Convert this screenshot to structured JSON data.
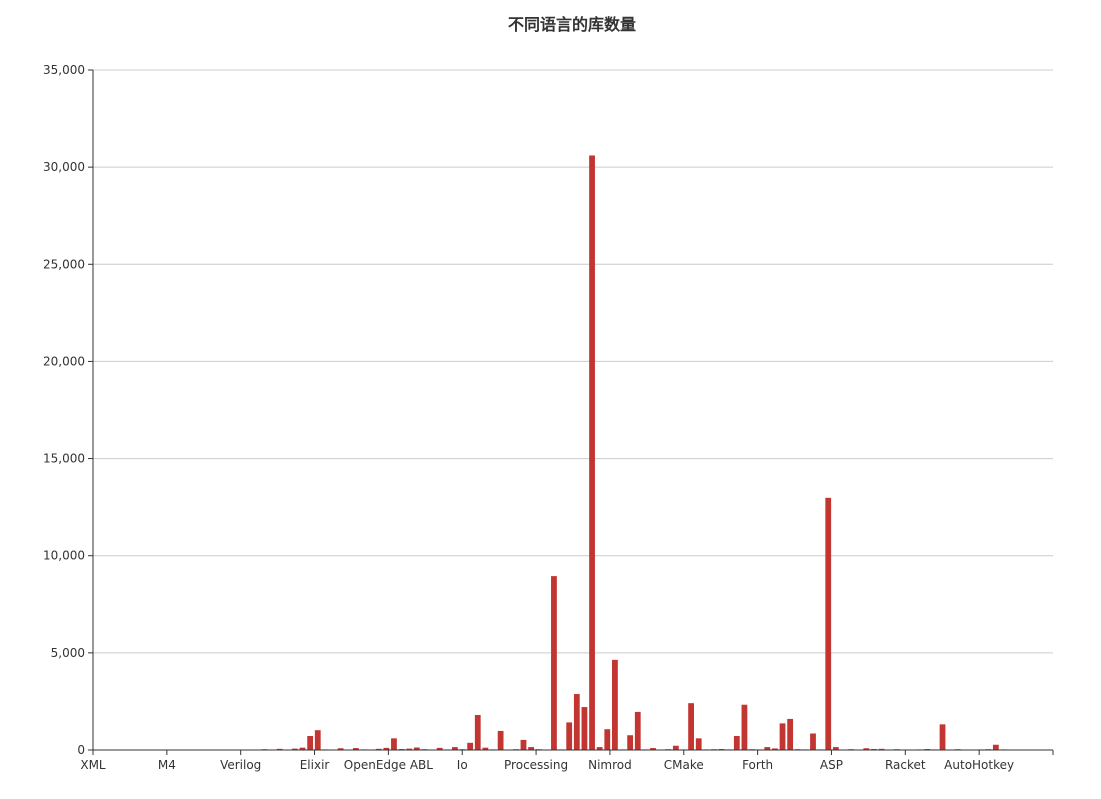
{
  "chart_data": {
    "type": "bar",
    "title": "不同语言的库数量",
    "xlabel": "",
    "ylabel": "",
    "ylim": [
      0,
      35000
    ],
    "yticks": [
      0,
      5000,
      10000,
      15000,
      20000,
      25000,
      30000,
      35000
    ],
    "ytick_labels": [
      "0",
      "5,000",
      "10,000",
      "15,000",
      "20,000",
      "25,000",
      "30,000",
      "35,000"
    ],
    "x_tick_labels": [
      "XML",
      "M4",
      "Verilog",
      "Elixir",
      "OpenEdge ABL",
      "Io",
      "Processing",
      "Nimrod",
      "CMake",
      "Forth",
      "ASP",
      "Racket",
      "AutoHotkey"
    ],
    "grid": true,
    "legend": "none",
    "colors": {
      "bar": "#c23531",
      "grid": "#cccccc",
      "axis": "#333333",
      "text": "#333333"
    },
    "values": [
      5,
      2,
      3,
      2,
      4,
      3,
      2,
      3,
      5,
      2,
      12,
      8,
      3,
      5,
      4,
      6,
      3,
      4,
      2,
      5,
      3,
      20,
      40,
      15,
      60,
      25,
      70,
      120,
      720,
      1020,
      30,
      15,
      90,
      20,
      100,
      30,
      15,
      60,
      110,
      600,
      50,
      70,
      130,
      40,
      20,
      110,
      30,
      150,
      40,
      370,
      1800,
      120,
      30,
      980,
      20,
      40,
      520,
      150,
      40,
      25,
      8950,
      30,
      1420,
      2880,
      2210,
      30600,
      150,
      1070,
      4640,
      30,
      760,
      1960,
      30,
      100,
      25,
      40,
      220,
      30,
      2410,
      600,
      30,
      40,
      50,
      30,
      720,
      2330,
      40,
      30,
      150,
      80,
      1370,
      1600,
      40,
      30,
      850,
      30,
      12980,
      150,
      20,
      40,
      15,
      90,
      50,
      60,
      20,
      40,
      15,
      20,
      30,
      50,
      30,
      1320,
      20,
      40,
      15,
      20,
      30,
      40,
      270,
      30,
      20,
      15,
      20,
      10,
      15,
      10
    ]
  }
}
